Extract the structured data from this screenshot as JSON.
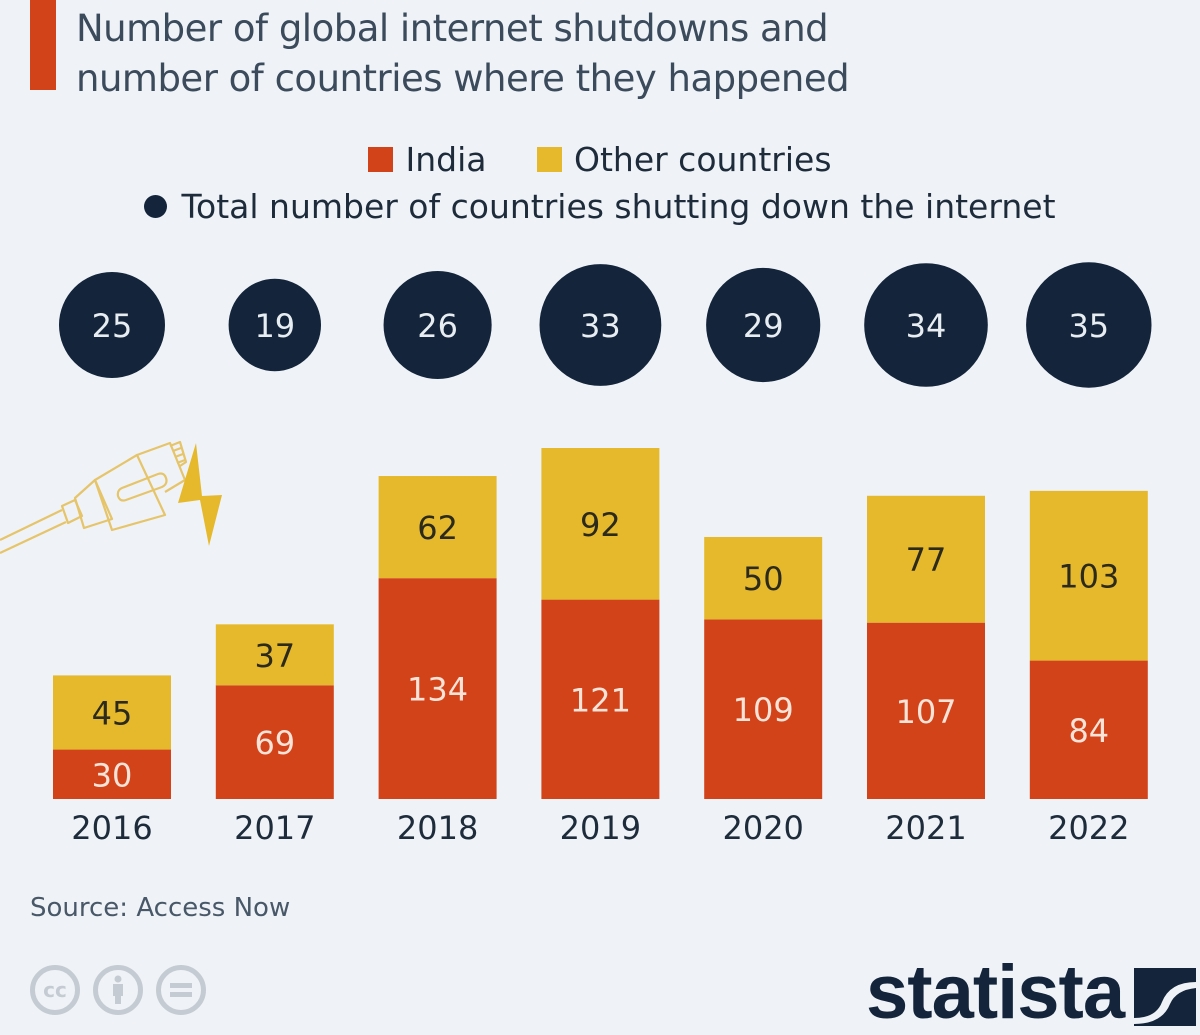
{
  "chart_data": {
    "type": "bar",
    "stacked": true,
    "title": "Number of global internet shutdowns and number of countries where they happened",
    "categories": [
      "2016",
      "2017",
      "2018",
      "2019",
      "2020",
      "2021",
      "2022"
    ],
    "series": [
      {
        "name": "India",
        "color": "#d2431a",
        "values": [
          30,
          69,
          134,
          121,
          109,
          107,
          84
        ]
      },
      {
        "name": "Other countries",
        "color": "#e6b92c",
        "values": [
          45,
          37,
          62,
          92,
          50,
          77,
          103
        ]
      }
    ],
    "bubbles": {
      "name": "Total number of countries shutting down the internet",
      "color": "#13243b",
      "values": [
        25,
        19,
        26,
        33,
        29,
        34,
        35
      ]
    },
    "xlabel": "",
    "ylabel": "",
    "ylim": [
      0,
      213
    ],
    "grid": false,
    "legend_position": "top-center"
  },
  "title": "Number of global internet shutdowns and number of countries where they happened",
  "legend": {
    "india": "India",
    "other": "Other countries",
    "total": "Total number of countries shutting down the internet"
  },
  "source": "Source: Access Now",
  "license_icons": [
    "cc-icon",
    "attribution-icon",
    "no-derivatives-icon"
  ],
  "logo": "statista",
  "colors": {
    "india": "#d2431a",
    "other": "#e6b92c",
    "bubble": "#13243b",
    "accent": "#d2431a",
    "background": "#eff3f7"
  }
}
